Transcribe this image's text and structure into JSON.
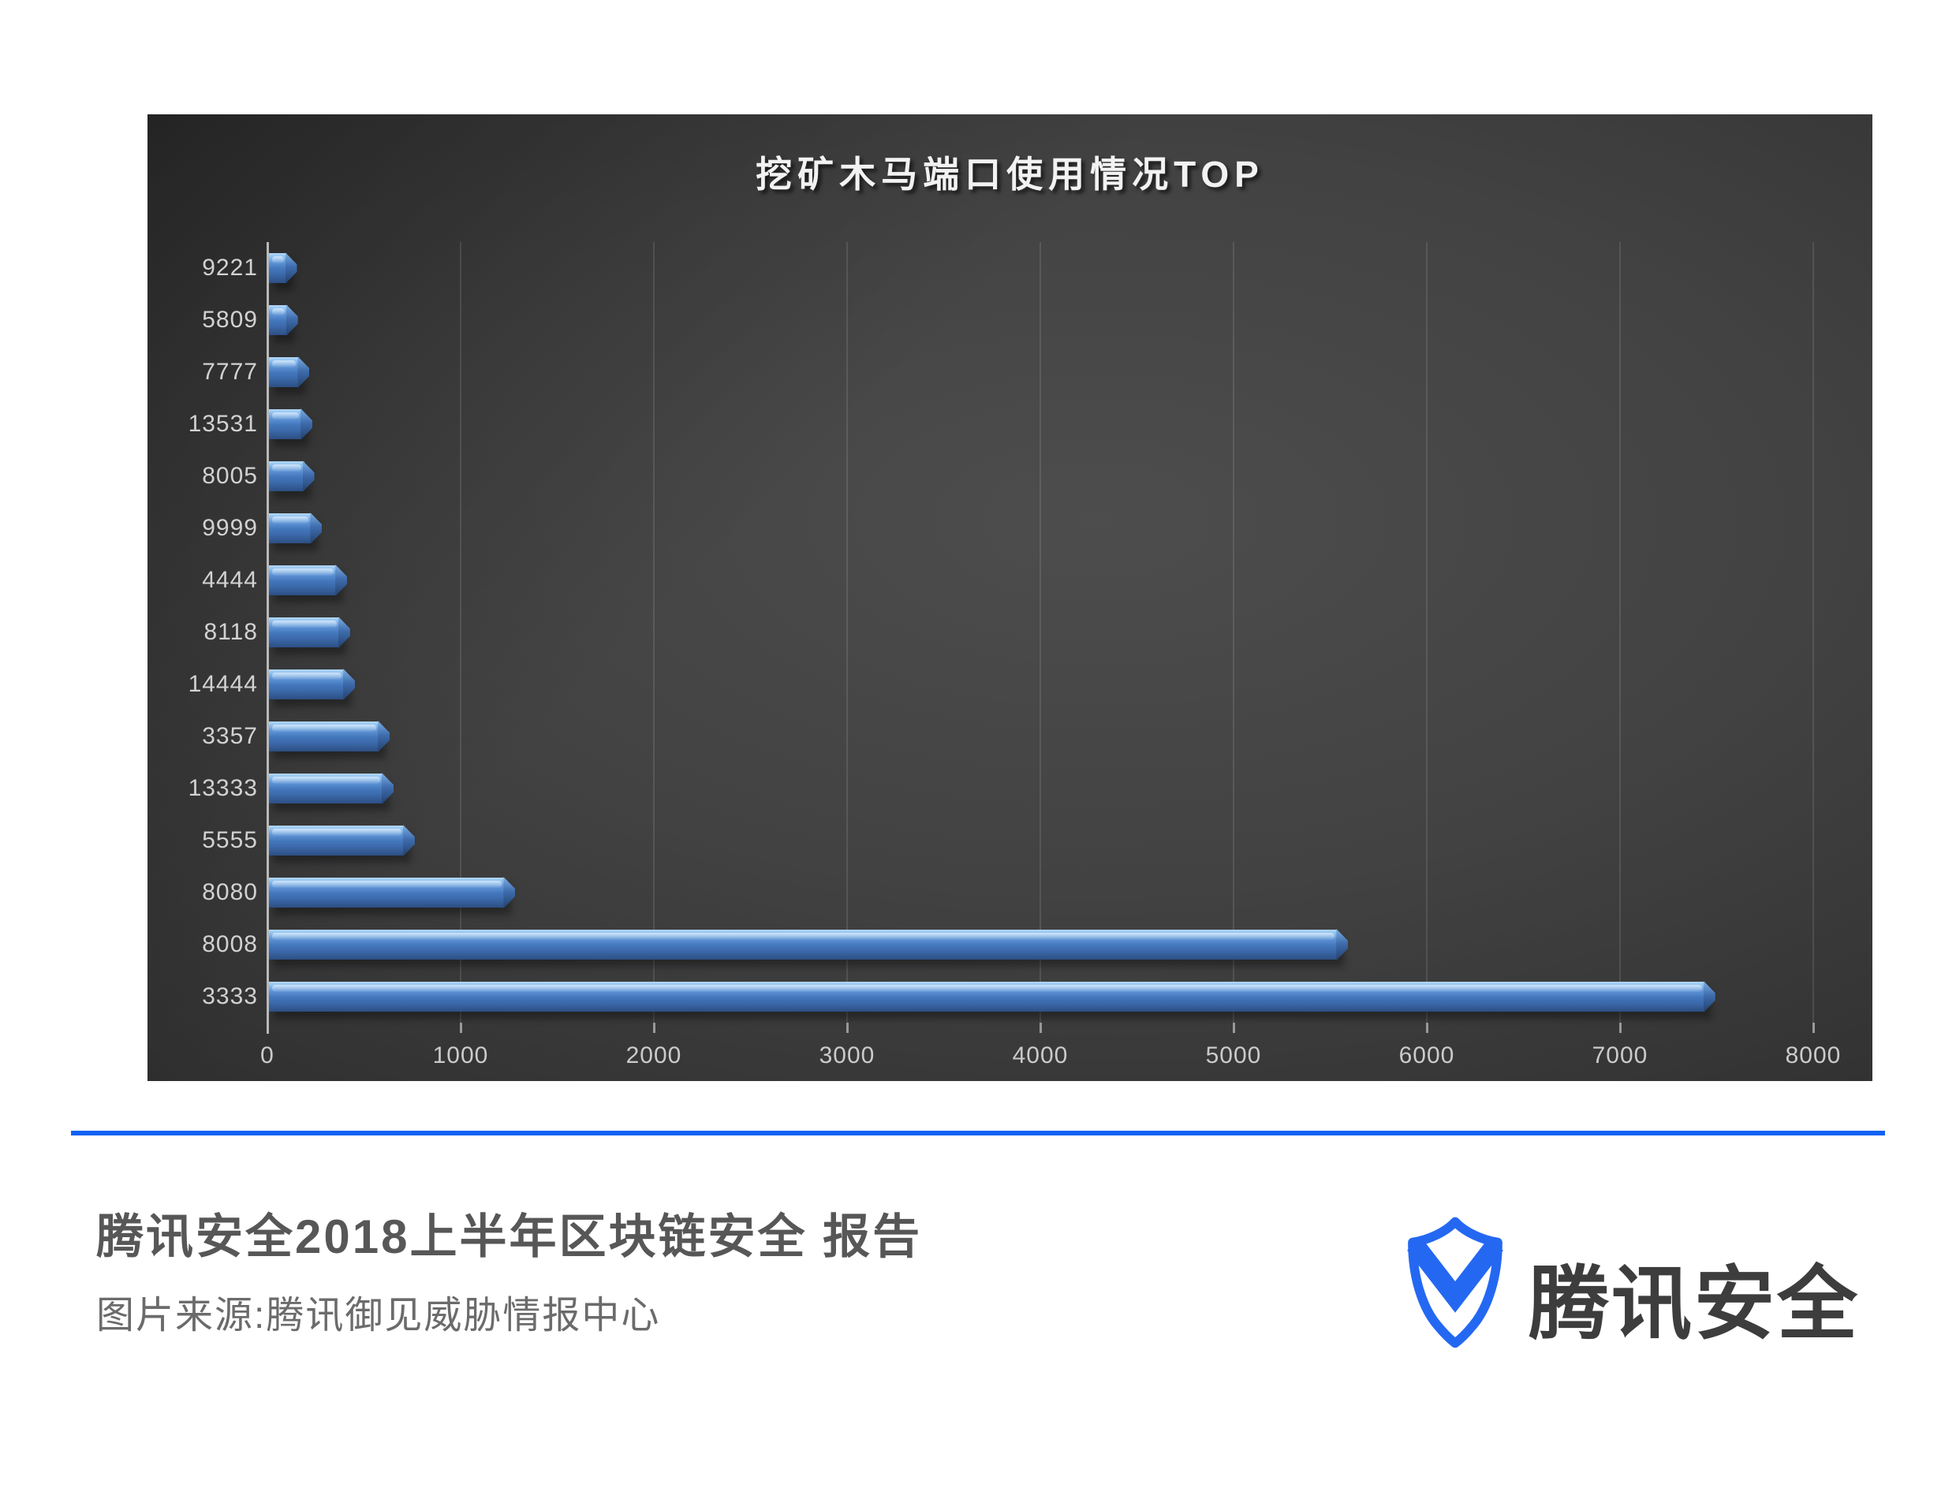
{
  "chart": {
    "title": "挖矿木马端口使用情况TOP"
  },
  "chart_data": {
    "type": "bar",
    "orientation": "horizontal",
    "title": "挖矿木马端口使用情况TOP",
    "categories": [
      "9221",
      "5809",
      "7777",
      "13531",
      "8005",
      "9999",
      "4444",
      "8118",
      "14444",
      "3357",
      "13333",
      "5555",
      "8080",
      "8008",
      "3333"
    ],
    "values": [
      100,
      105,
      165,
      180,
      190,
      230,
      360,
      375,
      400,
      580,
      600,
      710,
      1230,
      5540,
      7440
    ],
    "xlabel": "",
    "ylabel": "",
    "xlim": [
      0,
      8000
    ],
    "xticks": [
      0,
      1000,
      2000,
      3000,
      4000,
      5000,
      6000,
      7000,
      8000
    ],
    "grid": "vertical-gridlines",
    "legend": "none",
    "bar_color": "#4377bc",
    "panel_background": "dark-gray-gradient"
  },
  "footer": {
    "title": "腾讯安全2018上半年区块链安全 报告",
    "source": "图片来源:腾讯御见威胁情报中心",
    "logo_text": "腾讯安全"
  },
  "colors": {
    "divider_blue": "#1061f2",
    "logo_blue": "#2468f2",
    "bar_blue": "#4377bc",
    "title_text": "#f2f2f2",
    "axis_label": "#cbcbcb",
    "footer_title_text": "#575757",
    "footer_source_text": "#6b6b6b"
  }
}
